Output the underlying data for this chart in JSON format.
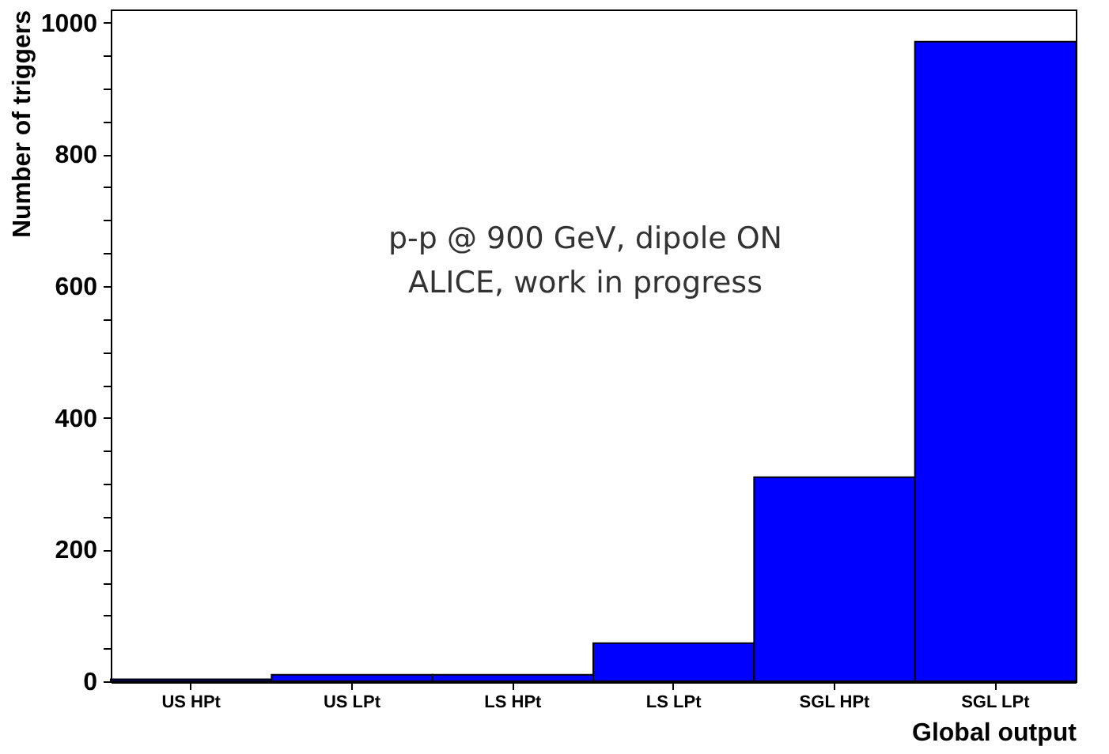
{
  "chart_data": {
    "type": "bar",
    "xlabel": "Global output",
    "ylabel": "Number of triggers",
    "categories": [
      "US HPt",
      "US LPt",
      "LS HPt",
      "LS LPt",
      "SGL HPt",
      "SGL LPt"
    ],
    "values": [
      3,
      10,
      10,
      58,
      310,
      971
    ],
    "color": "#0000ff",
    "ylim": [
      0,
      1020
    ],
    "yticks": [
      0,
      {
        "value": 50,
        "label": null
      },
      {
        "value": 100,
        "label": null
      },
      {
        "value": 150,
        "label": null
      },
      200,
      {
        "value": 250,
        "label": null
      },
      {
        "value": 300,
        "label": null
      },
      {
        "value": 350,
        "label": null
      },
      400,
      {
        "value": 450,
        "label": null
      },
      {
        "value": 500,
        "label": null
      },
      {
        "value": 550,
        "label": null
      },
      600,
      {
        "value": 650,
        "label": null
      },
      {
        "value": 700,
        "label": null
      },
      {
        "value": 750,
        "label": null
      },
      800,
      {
        "value": 850,
        "label": null
      },
      {
        "value": 900,
        "label": null
      },
      {
        "value": 950,
        "label": null
      },
      1000
    ],
    "annotations": [
      "p-p @ 900 GeV, dipole ON",
      "ALICE, work in progress"
    ],
    "grid": false
  }
}
